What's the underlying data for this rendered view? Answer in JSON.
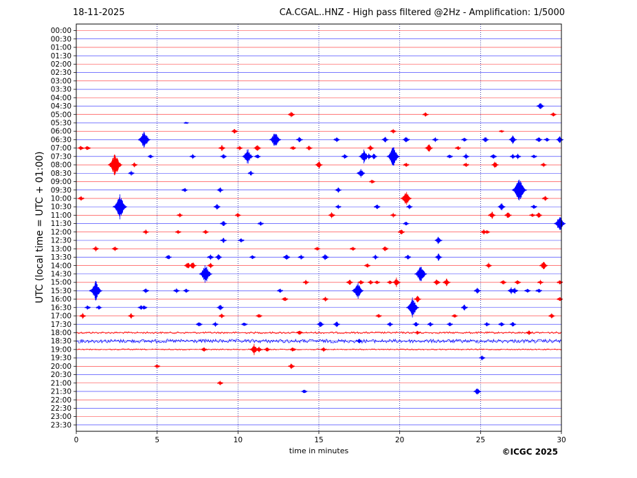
{
  "header": {
    "date": "18-11-2025",
    "title": "CA.CGAL..HNZ - High pass filtered @2Hz - Amplification: 1/5000"
  },
  "credit": "©ICGC 2025",
  "colors": {
    "trace_red": "#ff0000",
    "trace_blue": "#0000ff",
    "axis": "#000000",
    "grid": "#00008b"
  },
  "chart_data": {
    "type": "line",
    "chart_kind": "helicorder",
    "xlabel": "time in minutes",
    "ylabel": "UTC (local time = UTC + 01:00)",
    "xlim": [
      0,
      30
    ],
    "x_ticks": [
      0,
      5,
      10,
      15,
      20,
      25,
      30
    ],
    "x_grid": "dotted vertical lines at 5-minute intervals",
    "row_labels": [
      "00:00",
      "00:30",
      "01:00",
      "01:30",
      "02:00",
      "02:30",
      "03:00",
      "03:30",
      "04:00",
      "04:30",
      "05:00",
      "05:30",
      "06:00",
      "06:30",
      "07:00",
      "07:30",
      "08:00",
      "08:30",
      "09:00",
      "09:30",
      "10:00",
      "10:30",
      "11:00",
      "11:30",
      "12:00",
      "12:30",
      "13:00",
      "13:30",
      "14:00",
      "14:30",
      "15:00",
      "15:30",
      "16:00",
      "16:30",
      "17:00",
      "17:30",
      "18:00",
      "18:30",
      "19:00",
      "19:30",
      "20:00",
      "20:30",
      "21:00",
      "21:30",
      "22:00",
      "22:30",
      "23:00",
      "23:30"
    ],
    "row_color_pattern": [
      "red",
      "blue"
    ],
    "noisy_rows": [
      {
        "row": "18:00",
        "level": 0.25
      },
      {
        "row": "18:30",
        "level": 0.45
      },
      {
        "row": "19:00",
        "level": 0.15
      }
    ],
    "events": [
      {
        "row": "04:30",
        "t": 28.7,
        "amp": 0.55
      },
      {
        "row": "05:00",
        "t": 13.3,
        "amp": 0.4
      },
      {
        "row": "05:00",
        "t": 21.6,
        "amp": 0.3
      },
      {
        "row": "05:00",
        "t": 29.5,
        "amp": 0.3
      },
      {
        "row": "05:30",
        "t": 6.8,
        "amp": 0.15
      },
      {
        "row": "06:00",
        "t": 9.8,
        "amp": 0.35
      },
      {
        "row": "06:00",
        "t": 19.6,
        "amp": 0.3
      },
      {
        "row": "06:00",
        "t": 26.3,
        "amp": 0.2
      },
      {
        "row": "06:30",
        "t": 4.2,
        "amp": 1.2
      },
      {
        "row": "06:30",
        "t": 12.3,
        "amp": 1.1
      },
      {
        "row": "06:30",
        "t": 13.8,
        "amp": 0.4
      },
      {
        "row": "06:30",
        "t": 16.1,
        "amp": 0.35
      },
      {
        "row": "06:30",
        "t": 19.1,
        "amp": 0.4
      },
      {
        "row": "06:30",
        "t": 20.4,
        "amp": 0.45
      },
      {
        "row": "06:30",
        "t": 22.2,
        "amp": 0.3
      },
      {
        "row": "06:30",
        "t": 24.0,
        "amp": 0.3
      },
      {
        "row": "06:30",
        "t": 25.3,
        "amp": 0.4
      },
      {
        "row": "06:30",
        "t": 27.0,
        "amp": 0.55
      },
      {
        "row": "06:30",
        "t": 28.6,
        "amp": 0.4
      },
      {
        "row": "06:30",
        "t": 29.1,
        "amp": 0.3
      },
      {
        "row": "06:30",
        "t": 29.9,
        "amp": 0.45
      },
      {
        "row": "07:00",
        "t": 0.3,
        "amp": 0.35
      },
      {
        "row": "07:00",
        "t": 0.7,
        "amp": 0.35
      },
      {
        "row": "07:00",
        "t": 9.0,
        "amp": 0.4
      },
      {
        "row": "07:00",
        "t": 10.1,
        "amp": 0.3
      },
      {
        "row": "07:00",
        "t": 11.2,
        "amp": 0.45
      },
      {
        "row": "07:00",
        "t": 13.4,
        "amp": 0.3
      },
      {
        "row": "07:00",
        "t": 14.4,
        "amp": 0.35
      },
      {
        "row": "07:00",
        "t": 18.2,
        "amp": 0.4
      },
      {
        "row": "07:00",
        "t": 21.8,
        "amp": 0.55
      },
      {
        "row": "07:00",
        "t": 23.6,
        "amp": 0.3
      },
      {
        "row": "07:30",
        "t": 4.6,
        "amp": 0.3
      },
      {
        "row": "07:30",
        "t": 7.2,
        "amp": 0.3
      },
      {
        "row": "07:30",
        "t": 9.1,
        "amp": 0.35
      },
      {
        "row": "07:30",
        "t": 10.6,
        "amp": 1.0
      },
      {
        "row": "07:30",
        "t": 11.2,
        "amp": 0.35
      },
      {
        "row": "07:30",
        "t": 16.6,
        "amp": 0.35
      },
      {
        "row": "07:30",
        "t": 17.8,
        "amp": 0.9
      },
      {
        "row": "07:30",
        "t": 18.1,
        "amp": 0.4
      },
      {
        "row": "07:30",
        "t": 18.4,
        "amp": 0.4
      },
      {
        "row": "07:30",
        "t": 19.6,
        "amp": 1.3
      },
      {
        "row": "07:30",
        "t": 23.1,
        "amp": 0.3
      },
      {
        "row": "07:30",
        "t": 24.1,
        "amp": 0.35
      },
      {
        "row": "07:30",
        "t": 25.8,
        "amp": 0.4
      },
      {
        "row": "07:30",
        "t": 27.0,
        "amp": 0.3
      },
      {
        "row": "07:30",
        "t": 27.3,
        "amp": 0.35
      },
      {
        "row": "07:30",
        "t": 28.3,
        "amp": 0.3
      },
      {
        "row": "08:00",
        "t": 2.4,
        "amp": 1.5
      },
      {
        "row": "08:00",
        "t": 3.6,
        "amp": 0.3
      },
      {
        "row": "08:00",
        "t": 15.0,
        "amp": 0.5
      },
      {
        "row": "08:00",
        "t": 20.4,
        "amp": 0.3
      },
      {
        "row": "08:00",
        "t": 24.1,
        "amp": 0.3
      },
      {
        "row": "08:00",
        "t": 25.9,
        "amp": 0.45
      },
      {
        "row": "08:00",
        "t": 28.9,
        "amp": 0.3
      },
      {
        "row": "08:30",
        "t": 3.4,
        "amp": 0.3
      },
      {
        "row": "08:30",
        "t": 10.8,
        "amp": 0.3
      },
      {
        "row": "08:30",
        "t": 17.6,
        "amp": 0.6
      },
      {
        "row": "09:00",
        "t": 18.3,
        "amp": 0.3
      },
      {
        "row": "09:30",
        "t": 6.7,
        "amp": 0.3
      },
      {
        "row": "09:30",
        "t": 8.9,
        "amp": 0.35
      },
      {
        "row": "09:30",
        "t": 16.2,
        "amp": 0.35
      },
      {
        "row": "09:30",
        "t": 27.4,
        "amp": 1.6
      },
      {
        "row": "10:00",
        "t": 0.3,
        "amp": 0.35
      },
      {
        "row": "10:00",
        "t": 20.4,
        "amp": 1.0
      },
      {
        "row": "10:00",
        "t": 29.0,
        "amp": 0.35
      },
      {
        "row": "10:30",
        "t": 2.7,
        "amp": 1.5
      },
      {
        "row": "10:30",
        "t": 8.7,
        "amp": 0.4
      },
      {
        "row": "10:30",
        "t": 16.2,
        "amp": 0.3
      },
      {
        "row": "10:30",
        "t": 18.6,
        "amp": 0.35
      },
      {
        "row": "10:30",
        "t": 20.6,
        "amp": 0.3
      },
      {
        "row": "10:30",
        "t": 26.3,
        "amp": 0.5
      },
      {
        "row": "10:30",
        "t": 28.3,
        "amp": 0.35
      },
      {
        "row": "11:00",
        "t": 6.4,
        "amp": 0.3
      },
      {
        "row": "11:00",
        "t": 10.0,
        "amp": 0.3
      },
      {
        "row": "11:00",
        "t": 15.8,
        "amp": 0.4
      },
      {
        "row": "11:00",
        "t": 19.6,
        "amp": 0.3
      },
      {
        "row": "11:00",
        "t": 25.7,
        "amp": 0.5
      },
      {
        "row": "11:00",
        "t": 26.7,
        "amp": 0.45
      },
      {
        "row": "11:00",
        "t": 28.2,
        "amp": 0.3
      },
      {
        "row": "11:00",
        "t": 28.6,
        "amp": 0.4
      },
      {
        "row": "11:30",
        "t": 9.1,
        "amp": 0.4
      },
      {
        "row": "11:30",
        "t": 11.4,
        "amp": 0.3
      },
      {
        "row": "11:30",
        "t": 20.4,
        "amp": 0.3
      },
      {
        "row": "11:30",
        "t": 29.9,
        "amp": 1.1
      },
      {
        "row": "12:00",
        "t": 4.3,
        "amp": 0.3
      },
      {
        "row": "12:00",
        "t": 6.3,
        "amp": 0.3
      },
      {
        "row": "12:00",
        "t": 8.0,
        "amp": 0.3
      },
      {
        "row": "12:00",
        "t": 20.1,
        "amp": 0.4
      },
      {
        "row": "12:00",
        "t": 25.2,
        "amp": 0.35
      },
      {
        "row": "12:00",
        "t": 25.4,
        "amp": 0.3
      },
      {
        "row": "12:30",
        "t": 9.1,
        "amp": 0.35
      },
      {
        "row": "12:30",
        "t": 10.2,
        "amp": 0.3
      },
      {
        "row": "12:30",
        "t": 22.4,
        "amp": 0.5
      },
      {
        "row": "13:00",
        "t": 1.2,
        "amp": 0.35
      },
      {
        "row": "13:00",
        "t": 2.4,
        "amp": 0.35
      },
      {
        "row": "13:00",
        "t": 14.9,
        "amp": 0.3
      },
      {
        "row": "13:00",
        "t": 17.1,
        "amp": 0.3
      },
      {
        "row": "13:00",
        "t": 19.1,
        "amp": 0.35
      },
      {
        "row": "13:30",
        "t": 5.7,
        "amp": 0.35
      },
      {
        "row": "13:30",
        "t": 8.3,
        "amp": 0.4
      },
      {
        "row": "13:30",
        "t": 8.8,
        "amp": 0.4
      },
      {
        "row": "13:30",
        "t": 10.9,
        "amp": 0.3
      },
      {
        "row": "13:30",
        "t": 13.0,
        "amp": 0.45
      },
      {
        "row": "13:30",
        "t": 13.9,
        "amp": 0.35
      },
      {
        "row": "13:30",
        "t": 15.4,
        "amp": 0.45
      },
      {
        "row": "13:30",
        "t": 18.5,
        "amp": 0.3
      },
      {
        "row": "13:30",
        "t": 20.5,
        "amp": 0.35
      },
      {
        "row": "13:30",
        "t": 22.4,
        "amp": 0.45
      },
      {
        "row": "14:00",
        "t": 6.9,
        "amp": 0.5
      },
      {
        "row": "14:00",
        "t": 7.2,
        "amp": 0.5
      },
      {
        "row": "14:00",
        "t": 8.3,
        "amp": 0.35
      },
      {
        "row": "14:00",
        "t": 18.0,
        "amp": 0.35
      },
      {
        "row": "14:00",
        "t": 25.5,
        "amp": 0.35
      },
      {
        "row": "14:00",
        "t": 28.9,
        "amp": 0.6
      },
      {
        "row": "14:30",
        "t": 8.0,
        "amp": 1.3
      },
      {
        "row": "14:30",
        "t": 21.3,
        "amp": 1.2
      },
      {
        "row": "15:00",
        "t": 14.2,
        "amp": 0.3
      },
      {
        "row": "15:00",
        "t": 16.9,
        "amp": 0.4
      },
      {
        "row": "15:00",
        "t": 17.6,
        "amp": 0.35
      },
      {
        "row": "15:00",
        "t": 18.2,
        "amp": 0.3
      },
      {
        "row": "15:00",
        "t": 18.6,
        "amp": 0.3
      },
      {
        "row": "15:00",
        "t": 19.4,
        "amp": 0.3
      },
      {
        "row": "15:00",
        "t": 19.8,
        "amp": 0.6
      },
      {
        "row": "15:00",
        "t": 22.3,
        "amp": 0.45
      },
      {
        "row": "15:00",
        "t": 22.9,
        "amp": 0.55
      },
      {
        "row": "15:00",
        "t": 26.4,
        "amp": 0.35
      },
      {
        "row": "15:00",
        "t": 27.3,
        "amp": 0.35
      },
      {
        "row": "15:00",
        "t": 28.7,
        "amp": 0.3
      },
      {
        "row": "15:00",
        "t": 29.9,
        "amp": 0.3
      },
      {
        "row": "15:30",
        "t": 1.2,
        "amp": 1.3
      },
      {
        "row": "15:30",
        "t": 4.3,
        "amp": 0.35
      },
      {
        "row": "15:30",
        "t": 6.2,
        "amp": 0.35
      },
      {
        "row": "15:30",
        "t": 6.8,
        "amp": 0.3
      },
      {
        "row": "15:30",
        "t": 12.6,
        "amp": 0.3
      },
      {
        "row": "15:30",
        "t": 17.4,
        "amp": 1.1
      },
      {
        "row": "15:30",
        "t": 24.8,
        "amp": 0.4
      },
      {
        "row": "15:30",
        "t": 26.9,
        "amp": 0.45
      },
      {
        "row": "15:30",
        "t": 27.1,
        "amp": 0.45
      },
      {
        "row": "15:30",
        "t": 27.9,
        "amp": 0.35
      },
      {
        "row": "15:30",
        "t": 28.6,
        "amp": 0.35
      },
      {
        "row": "16:00",
        "t": 12.9,
        "amp": 0.35
      },
      {
        "row": "16:00",
        "t": 15.4,
        "amp": 0.3
      },
      {
        "row": "16:00",
        "t": 21.1,
        "amp": 0.45
      },
      {
        "row": "16:00",
        "t": 29.9,
        "amp": 0.3
      },
      {
        "row": "16:30",
        "t": 0.7,
        "amp": 0.3
      },
      {
        "row": "16:30",
        "t": 1.4,
        "amp": 0.3
      },
      {
        "row": "16:30",
        "t": 4.0,
        "amp": 0.35
      },
      {
        "row": "16:30",
        "t": 4.2,
        "amp": 0.3
      },
      {
        "row": "16:30",
        "t": 8.9,
        "amp": 0.4
      },
      {
        "row": "16:30",
        "t": 20.8,
        "amp": 1.3
      },
      {
        "row": "16:30",
        "t": 24.0,
        "amp": 0.4
      },
      {
        "row": "17:00",
        "t": 0.4,
        "amp": 0.35
      },
      {
        "row": "17:00",
        "t": 3.4,
        "amp": 0.35
      },
      {
        "row": "17:00",
        "t": 9.0,
        "amp": 0.3
      },
      {
        "row": "17:00",
        "t": 11.3,
        "amp": 0.35
      },
      {
        "row": "17:00",
        "t": 18.7,
        "amp": 0.3
      },
      {
        "row": "17:00",
        "t": 23.4,
        "amp": 0.3
      },
      {
        "row": "17:00",
        "t": 29.4,
        "amp": 0.35
      },
      {
        "row": "17:30",
        "t": 7.6,
        "amp": 0.35
      },
      {
        "row": "17:30",
        "t": 8.6,
        "amp": 0.3
      },
      {
        "row": "17:30",
        "t": 10.4,
        "amp": 0.3
      },
      {
        "row": "17:30",
        "t": 15.1,
        "amp": 0.45
      },
      {
        "row": "17:30",
        "t": 16.1,
        "amp": 0.4
      },
      {
        "row": "17:30",
        "t": 19.4,
        "amp": 0.3
      },
      {
        "row": "17:30",
        "t": 21.0,
        "amp": 0.35
      },
      {
        "row": "17:30",
        "t": 21.9,
        "amp": 0.3
      },
      {
        "row": "17:30",
        "t": 23.1,
        "amp": 0.3
      },
      {
        "row": "17:30",
        "t": 25.4,
        "amp": 0.3
      },
      {
        "row": "17:30",
        "t": 26.3,
        "amp": 0.35
      },
      {
        "row": "17:30",
        "t": 27.0,
        "amp": 0.35
      },
      {
        "row": "18:00",
        "t": 13.8,
        "amp": 0.35
      },
      {
        "row": "18:00",
        "t": 21.1,
        "amp": 0.3
      },
      {
        "row": "18:00",
        "t": 28.0,
        "amp": 0.3
      },
      {
        "row": "18:30",
        "t": 17.5,
        "amp": 0.35
      },
      {
        "row": "19:00",
        "t": 7.9,
        "amp": 0.35
      },
      {
        "row": "19:00",
        "t": 11.0,
        "amp": 0.7
      },
      {
        "row": "19:00",
        "t": 11.3,
        "amp": 0.4
      },
      {
        "row": "19:00",
        "t": 11.8,
        "amp": 0.35
      },
      {
        "row": "19:00",
        "t": 13.4,
        "amp": 0.35
      },
      {
        "row": "19:00",
        "t": 15.3,
        "amp": 0.3
      },
      {
        "row": "19:30",
        "t": 25.1,
        "amp": 0.3
      },
      {
        "row": "20:00",
        "t": 5.0,
        "amp": 0.3
      },
      {
        "row": "20:00",
        "t": 13.3,
        "amp": 0.4
      },
      {
        "row": "21:00",
        "t": 8.9,
        "amp": 0.3
      },
      {
        "row": "21:30",
        "t": 14.1,
        "amp": 0.3
      },
      {
        "row": "21:30",
        "t": 24.8,
        "amp": 0.5
      }
    ]
  }
}
